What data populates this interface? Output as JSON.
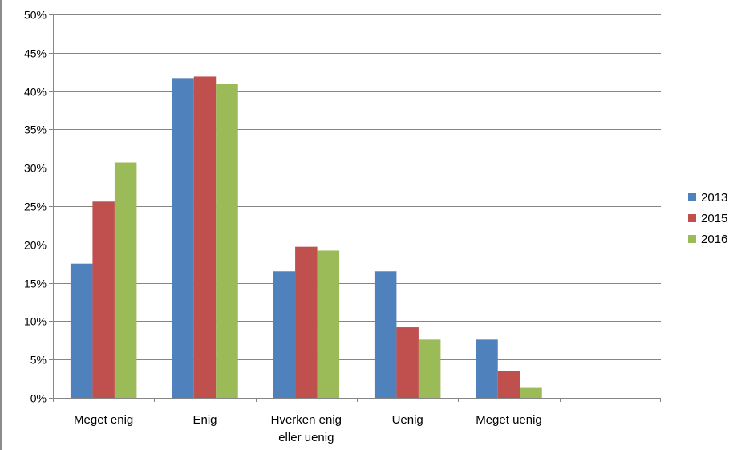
{
  "chart_data": {
    "type": "bar",
    "categories": [
      "Meget enig",
      "Enig",
      "Hverken enig\neller uenig",
      "Uenig",
      "Meget uenig",
      ""
    ],
    "series": [
      {
        "name": "2013",
        "color": "#4F81BD",
        "values": [
          17.5,
          41.7,
          16.5,
          16.5,
          7.6,
          null
        ]
      },
      {
        "name": "2015",
        "color": "#C0504D",
        "values": [
          25.6,
          41.9,
          19.7,
          9.2,
          3.5,
          null
        ]
      },
      {
        "name": "2016",
        "color": "#9BBB59",
        "values": [
          30.7,
          40.9,
          19.2,
          7.6,
          1.3,
          null
        ]
      }
    ],
    "ylim": [
      0,
      50
    ],
    "yticks": [
      0,
      5,
      10,
      15,
      20,
      25,
      30,
      35,
      40,
      45,
      50
    ],
    "ytick_labels": [
      "0%",
      "5%",
      "10%",
      "15%",
      "20%",
      "25%",
      "30%",
      "35%",
      "40%",
      "45%",
      "50%"
    ],
    "title": "",
    "xlabel": "",
    "ylabel": "",
    "grid": true,
    "legend_position": "right"
  }
}
